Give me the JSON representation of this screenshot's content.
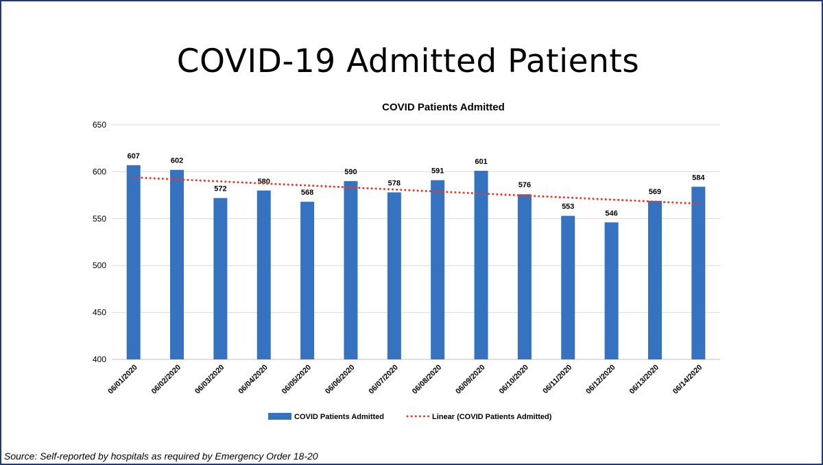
{
  "slide": {
    "title": "COVID-19 Admitted Patients",
    "source": "Source: Self-reported by hospitals as required by Emergency Order 18-20"
  },
  "colors": {
    "bar": "#3572C0",
    "trendline": "#E8392B",
    "grid": "#D9D9D9",
    "frame": "#1F3B6F"
  },
  "chart_data": {
    "type": "bar",
    "title": "COVID Patients Admitted",
    "xlabel": "",
    "ylabel": "",
    "ylim": [
      400,
      650
    ],
    "yticks": [
      400,
      450,
      500,
      550,
      600,
      650
    ],
    "grid": true,
    "legend_position": "bottom",
    "categories": [
      "06/01/2020",
      "06/02/2020",
      "06/03/2020",
      "06/04/2020",
      "06/05/2020",
      "06/06/2020",
      "06/07/2020",
      "06/08/2020",
      "06/09/2020",
      "06/10/2020",
      "06/11/2020",
      "06/12/2020",
      "06/13/2020",
      "06/14/2020"
    ],
    "series": [
      {
        "name": "COVID Patients Admitted",
        "values": [
          607,
          602,
          572,
          580,
          568,
          590,
          578,
          591,
          601,
          576,
          553,
          546,
          569,
          584
        ]
      }
    ],
    "trendline": {
      "name": "Linear (COVID Patients Admitted)",
      "type": "linear",
      "start": 594,
      "end": 566
    }
  }
}
